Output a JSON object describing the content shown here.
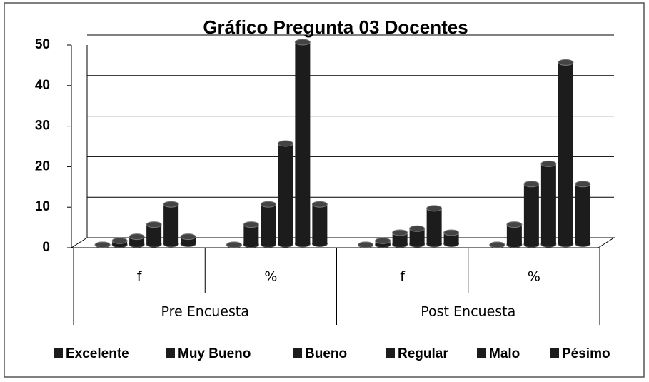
{
  "chart_data": {
    "type": "bar3d",
    "title": "Gráfico Pregunta 03 Docentes",
    "categories": [
      "f",
      "%",
      "f",
      "%"
    ],
    "category_groups": [
      "Pre Encuesta",
      "Post Encuesta"
    ],
    "series": [
      {
        "name": "Excelente",
        "color": "#1c1c1c",
        "values": [
          0,
          0,
          0,
          0
        ]
      },
      {
        "name": "Muy Bueno",
        "color": "#1c1c1c",
        "values": [
          1,
          5,
          1,
          5
        ]
      },
      {
        "name": "Bueno",
        "color": "#1c1c1c",
        "values": [
          2,
          10,
          3,
          15
        ]
      },
      {
        "name": "Regular",
        "color": "#1c1c1c",
        "values": [
          5,
          25,
          4,
          20
        ]
      },
      {
        "name": "Malo",
        "color": "#1c1c1c",
        "values": [
          10,
          50,
          9,
          45
        ]
      },
      {
        "name": "Pésimo",
        "color": "#1c1c1c",
        "values": [
          2,
          10,
          3,
          15
        ]
      }
    ],
    "ylim": [
      0,
      50
    ],
    "yticks": [
      0,
      10,
      20,
      30,
      40,
      50
    ],
    "grid": true,
    "legend": "bottom"
  }
}
